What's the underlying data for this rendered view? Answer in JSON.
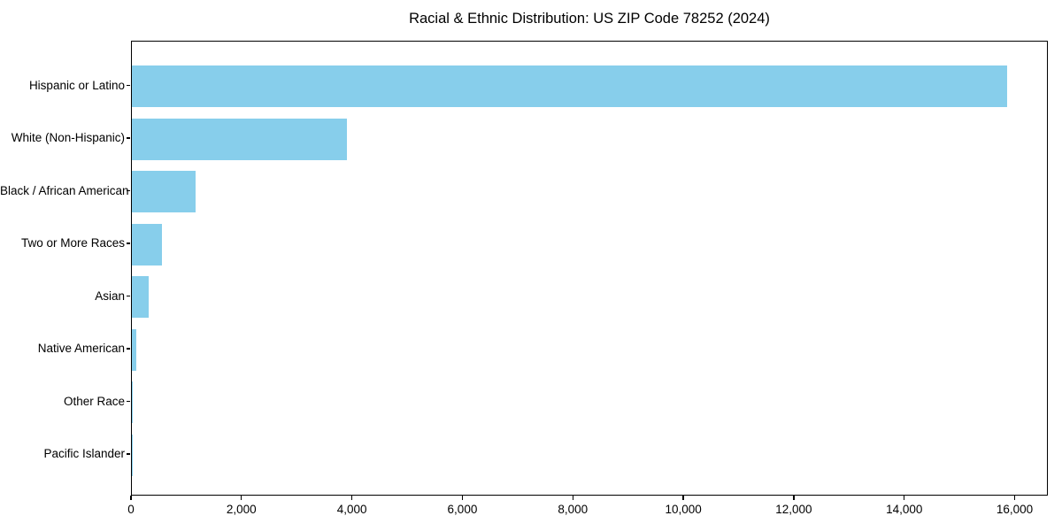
{
  "chart_data": {
    "type": "bar",
    "orientation": "horizontal",
    "title": "Racial & Ethnic Distribution: US ZIP Code 78252 (2024)",
    "categories": [
      "Hispanic or Latino",
      "White (Non-Hispanic)",
      "Black / African American",
      "Two or More Races",
      "Asian",
      "Native American",
      "Other Race",
      "Pacific Islander"
    ],
    "values": [
      15850,
      3900,
      1150,
      550,
      300,
      75,
      10,
      5
    ],
    "xlabel": "",
    "ylabel": "",
    "xlim": [
      0,
      16600
    ],
    "xticks": {
      "values": [
        0,
        2000,
        4000,
        6000,
        8000,
        10000,
        12000,
        14000,
        16000
      ],
      "labels": [
        "0",
        "2,000",
        "4,000",
        "6,000",
        "8,000",
        "10,000",
        "12,000",
        "14,000",
        "16,000"
      ]
    },
    "bar_color": "#87CEEB",
    "spine_color": "#000000",
    "background": "#ffffff",
    "grid": false,
    "legend": null
  }
}
